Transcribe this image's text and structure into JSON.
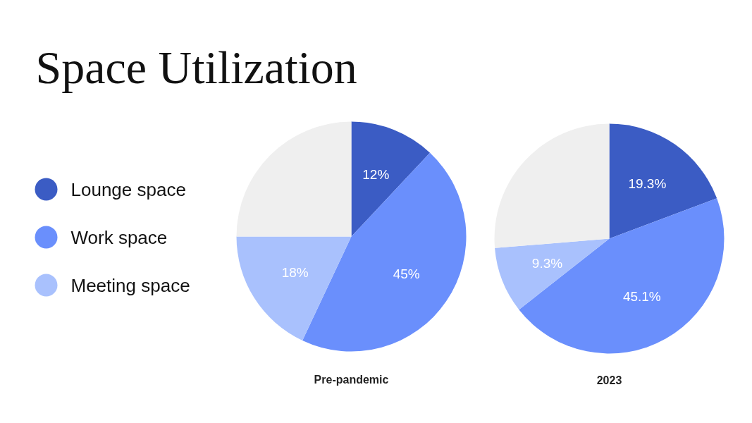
{
  "chart_data": [
    {
      "type": "pie",
      "title": "Space Utilization",
      "xlabel": "Pre-pandemic",
      "categories": [
        "Lounge space",
        "Work space",
        "Meeting space",
        null
      ],
      "values": [
        12,
        45,
        18,
        25
      ],
      "colors": [
        "#3b5cc4",
        "#6a8ffc",
        "#a9c1fd",
        "#efefef"
      ],
      "value_labels": [
        "12%",
        "45%",
        "18%",
        null
      ],
      "legend": "left"
    },
    {
      "type": "pie",
      "xlabel": "2023",
      "categories": [
        null,
        null,
        null,
        null
      ],
      "values": [
        19.3,
        45.1,
        9.3,
        26.3
      ],
      "colors": [
        "#3b5cc4",
        "#6a8ffc",
        "#a9c1fd",
        "#efefef"
      ],
      "value_labels": [
        "19.3%",
        "45.1%",
        "9.3%",
        null
      ]
    }
  ]
}
